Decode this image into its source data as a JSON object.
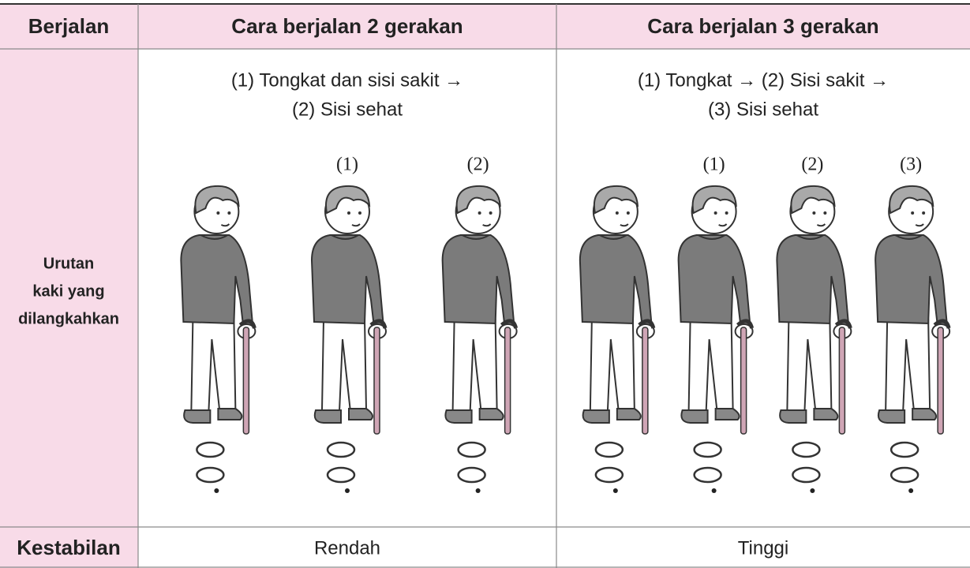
{
  "table": {
    "header": [
      "Berjalan",
      "Cara berjalan 2 gerakan",
      "Cara berjalan 3 gerakan"
    ],
    "sequence_row": {
      "label": [
        "Urutan",
        "kaki yang",
        "dilangkahkan"
      ],
      "cells": [
        {
          "description": [
            "(1) Tongkat dan sisi sakit →",
            "(2) Sisi sehat"
          ],
          "steps": [
            "(1)",
            "(2)"
          ]
        },
        {
          "description": [
            "(1) Tongkat → (2) Sisi sakit →",
            "(3) Sisi sehat"
          ],
          "steps": [
            "(1)",
            "(2)",
            "(3)"
          ]
        }
      ]
    },
    "stability_row": {
      "label": "Kestabilan",
      "values": [
        "Rendah",
        "Tinggi"
      ]
    }
  }
}
